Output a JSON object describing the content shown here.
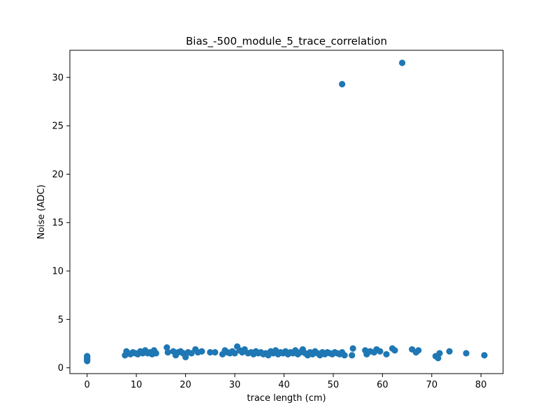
{
  "chart_data": {
    "type": "scatter",
    "title": "Bias_-500_module_5_trace_correlation",
    "xlabel": "trace length (cm)",
    "ylabel": "Noise (ADC)",
    "xlim": [
      -3.5,
      84.5
    ],
    "ylim": [
      -0.6,
      32.8
    ],
    "xticks": [
      0,
      10,
      20,
      30,
      40,
      50,
      60,
      70,
      80
    ],
    "yticks": [
      0,
      5,
      10,
      15,
      20,
      25,
      30
    ],
    "xtick_labels": [
      "0",
      "10",
      "20",
      "30",
      "40",
      "50",
      "60",
      "70",
      "80"
    ],
    "ytick_labels": [
      "0",
      "5",
      "10",
      "15",
      "20",
      "25",
      "30"
    ],
    "grid": false,
    "legend": "none",
    "marker_color": "#1f77b4",
    "series": [
      {
        "points": [
          [
            0,
            0.8
          ],
          [
            0,
            0.9
          ],
          [
            0,
            1.0
          ],
          [
            0,
            1.1
          ],
          [
            0,
            1.2
          ],
          [
            0,
            0.7
          ],
          [
            7.7,
            1.3
          ],
          [
            8.0,
            1.7
          ],
          [
            8.3,
            1.5
          ],
          [
            8.8,
            1.4
          ],
          [
            9.3,
            1.6
          ],
          [
            9.8,
            1.5
          ],
          [
            10.3,
            1.4
          ],
          [
            10.8,
            1.7
          ],
          [
            11.3,
            1.5
          ],
          [
            11.8,
            1.8
          ],
          [
            12.3,
            1.5
          ],
          [
            12.8,
            1.6
          ],
          [
            13.2,
            1.4
          ],
          [
            13.6,
            1.8
          ],
          [
            14.0,
            1.5
          ],
          [
            16.2,
            2.1
          ],
          [
            16.4,
            1.6
          ],
          [
            17.5,
            1.7
          ],
          [
            18.0,
            1.3
          ],
          [
            18.5,
            1.6
          ],
          [
            19.0,
            1.7
          ],
          [
            19.5,
            1.5
          ],
          [
            20.0,
            1.1
          ],
          [
            20.5,
            1.6
          ],
          [
            21.2,
            1.5
          ],
          [
            22.0,
            1.9
          ],
          [
            22.5,
            1.6
          ],
          [
            23.3,
            1.7
          ],
          [
            25.0,
            1.6
          ],
          [
            26.0,
            1.6
          ],
          [
            27.5,
            1.4
          ],
          [
            28.0,
            1.8
          ],
          [
            28.5,
            1.6
          ],
          [
            29.0,
            1.5
          ],
          [
            29.5,
            1.7
          ],
          [
            30.0,
            1.5
          ],
          [
            30.5,
            2.2
          ],
          [
            31.0,
            1.8
          ],
          [
            31.5,
            1.6
          ],
          [
            32.0,
            1.9
          ],
          [
            32.7,
            1.5
          ],
          [
            33.3,
            1.6
          ],
          [
            33.8,
            1.4
          ],
          [
            34.3,
            1.7
          ],
          [
            34.8,
            1.5
          ],
          [
            35.3,
            1.6
          ],
          [
            35.8,
            1.4
          ],
          [
            36.3,
            1.5
          ],
          [
            36.8,
            1.3
          ],
          [
            37.3,
            1.7
          ],
          [
            37.8,
            1.5
          ],
          [
            38.3,
            1.8
          ],
          [
            38.8,
            1.4
          ],
          [
            39.3,
            1.6
          ],
          [
            39.8,
            1.5
          ],
          [
            40.3,
            1.7
          ],
          [
            40.8,
            1.4
          ],
          [
            41.3,
            1.6
          ],
          [
            41.8,
            1.5
          ],
          [
            42.3,
            1.8
          ],
          [
            42.8,
            1.4
          ],
          [
            43.3,
            1.6
          ],
          [
            43.8,
            1.9
          ],
          [
            44.3,
            1.5
          ],
          [
            44.8,
            1.3
          ],
          [
            45.3,
            1.6
          ],
          [
            45.8,
            1.4
          ],
          [
            46.3,
            1.7
          ],
          [
            46.8,
            1.5
          ],
          [
            47.3,
            1.3
          ],
          [
            47.8,
            1.6
          ],
          [
            48.3,
            1.4
          ],
          [
            48.8,
            1.6
          ],
          [
            49.3,
            1.5
          ],
          [
            49.8,
            1.4
          ],
          [
            50.3,
            1.6
          ],
          [
            50.8,
            1.5
          ],
          [
            51.3,
            1.4
          ],
          [
            51.8,
            1.6
          ],
          [
            52.3,
            1.3
          ],
          [
            53.8,
            1.3
          ],
          [
            54.0,
            2.0
          ],
          [
            56.5,
            1.8
          ],
          [
            56.8,
            1.4
          ],
          [
            57.5,
            1.7
          ],
          [
            58.3,
            1.6
          ],
          [
            58.8,
            1.9
          ],
          [
            59.5,
            1.7
          ],
          [
            60.8,
            1.4
          ],
          [
            62.0,
            2.0
          ],
          [
            62.5,
            1.8
          ],
          [
            66.0,
            1.9
          ],
          [
            66.8,
            1.6
          ],
          [
            67.3,
            1.8
          ],
          [
            70.8,
            1.2
          ],
          [
            71.3,
            1.0
          ],
          [
            71.6,
            1.5
          ],
          [
            73.6,
            1.7
          ],
          [
            77.0,
            1.5
          ],
          [
            80.7,
            1.3
          ],
          [
            51.8,
            29.3
          ],
          [
            64.0,
            31.5
          ]
        ]
      }
    ]
  }
}
